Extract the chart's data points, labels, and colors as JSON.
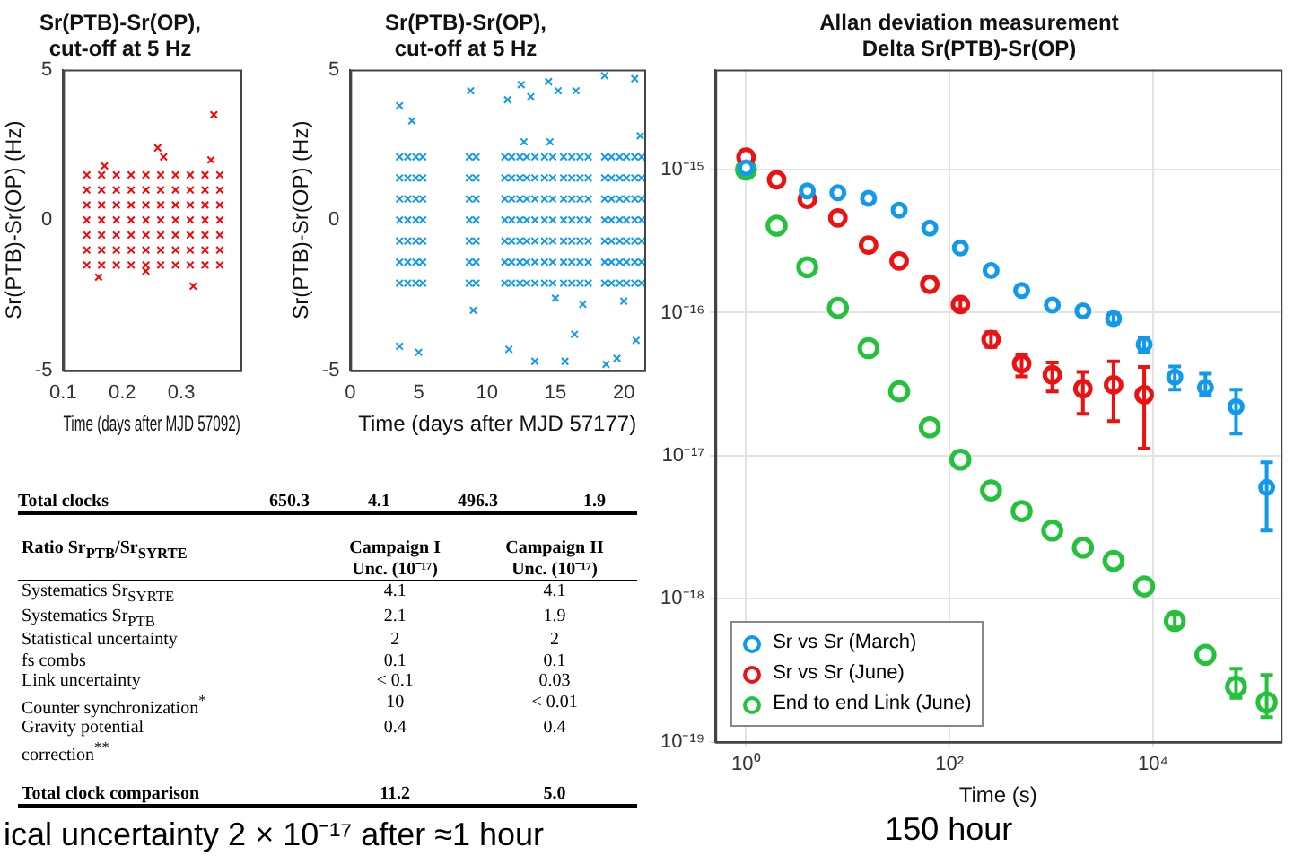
{
  "chart_data": [
    {
      "type": "scatter",
      "title": "Sr(PTB)-Sr(OP),\ncut-off at 5 Hz",
      "xlabel": "Time (days after MJD 57092)",
      "ylabel": "Sr(PTB)-Sr(OP) (Hz)",
      "marker": "cross",
      "xlim": [
        0.1,
        0.4
      ],
      "xticks": [
        0.1,
        0.2,
        0.3
      ],
      "ylim": [
        -5,
        5
      ],
      "yticks": [
        -5,
        0,
        5
      ],
      "series": [
        {
          "color": "#ff0000",
          "x": [
            0.14,
            0.14,
            0.14,
            0.14,
            0.14,
            0.14,
            0.14,
            0.165,
            0.165,
            0.165,
            0.165,
            0.165,
            0.165,
            0.165,
            0.19,
            0.19,
            0.19,
            0.19,
            0.19,
            0.19,
            0.19,
            0.215,
            0.215,
            0.215,
            0.215,
            0.215,
            0.215,
            0.215,
            0.24,
            0.24,
            0.24,
            0.24,
            0.24,
            0.24,
            0.24,
            0.265,
            0.265,
            0.265,
            0.265,
            0.265,
            0.265,
            0.265,
            0.29,
            0.29,
            0.29,
            0.29,
            0.29,
            0.29,
            0.29,
            0.315,
            0.315,
            0.315,
            0.315,
            0.315,
            0.315,
            0.315,
            0.34,
            0.34,
            0.34,
            0.34,
            0.34,
            0.34,
            0.34,
            0.365,
            0.365,
            0.365,
            0.365,
            0.365,
            0.365,
            0.365,
            0.355,
            0.26,
            0.27,
            0.17,
            0.16,
            0.32,
            0.24,
            0.35
          ],
          "values": [
            -1.5,
            -1,
            -0.5,
            0,
            0.5,
            1,
            1.5,
            -1.5,
            -1,
            -0.5,
            0,
            0.5,
            1,
            1.5,
            -1.5,
            -1,
            -0.5,
            0,
            0.5,
            1,
            1.5,
            -1.5,
            -1,
            -0.5,
            0,
            0.5,
            1,
            1.5,
            -1.5,
            -1,
            -0.5,
            0,
            0.5,
            1,
            1.5,
            -1.5,
            -1,
            -0.5,
            0,
            0.5,
            1,
            1.5,
            -1.5,
            -1,
            -0.5,
            0,
            0.5,
            1,
            1.5,
            -1.5,
            -1,
            -0.5,
            0,
            0.5,
            1,
            1.5,
            -1.5,
            -1,
            -0.5,
            0,
            0.5,
            1,
            1.5,
            -1.5,
            -1,
            -0.5,
            0,
            0.5,
            1,
            1.5,
            3.5,
            2.4,
            2.1,
            1.8,
            -1.9,
            -2.2,
            -1.7,
            2
          ]
        }
      ]
    },
    {
      "type": "scatter",
      "title": "Sr(PTB)-Sr(OP),\ncut-off at 5 Hz",
      "xlabel": "Time (days after MJD 57177)",
      "ylabel": "Sr(PTB)-Sr(OP) (Hz)",
      "marker": "cross",
      "xlim": [
        0,
        21.5
      ],
      "xticks": [
        0,
        5,
        10,
        15,
        20
      ],
      "ylim": [
        -5,
        5
      ],
      "yticks": [
        -5,
        0,
        5
      ],
      "series": [
        {
          "color": "#0f9aee",
          "x": [
            3.6,
            3.6,
            3.6,
            3.6,
            3.6,
            3.6,
            3.6,
            4.2,
            4.2,
            4.2,
            4.2,
            4.2,
            4.2,
            4.2,
            4.8,
            4.8,
            4.8,
            4.8,
            4.8,
            4.8,
            4.8,
            5.3,
            5.3,
            5.3,
            5.3,
            5.3,
            5.3,
            5.3,
            8.7,
            8.7,
            8.7,
            8.7,
            8.7,
            8.7,
            8.7,
            9.2,
            9.2,
            9.2,
            9.2,
            9.2,
            9.2,
            9.2,
            11.3,
            11.3,
            11.3,
            11.3,
            11.3,
            11.3,
            11.3,
            11.8,
            11.8,
            11.8,
            11.8,
            11.8,
            11.8,
            11.8,
            12.4,
            12.4,
            12.4,
            12.4,
            12.4,
            12.4,
            12.4,
            12.9,
            12.9,
            12.9,
            12.9,
            12.9,
            12.9,
            12.9,
            13.5,
            13.5,
            13.5,
            13.5,
            13.5,
            13.5,
            13.5,
            14.2,
            14.2,
            14.2,
            14.2,
            14.2,
            14.2,
            14.2,
            14.8,
            14.8,
            14.8,
            14.8,
            14.8,
            14.8,
            14.8,
            15.6,
            15.6,
            15.6,
            15.6,
            15.6,
            15.6,
            15.6,
            16.2,
            16.2,
            16.2,
            16.2,
            16.2,
            16.2,
            16.2,
            16.8,
            16.8,
            16.8,
            16.8,
            16.8,
            16.8,
            16.8,
            17.4,
            17.4,
            17.4,
            17.4,
            17.4,
            17.4,
            17.4,
            18.6,
            18.6,
            18.6,
            18.6,
            18.6,
            18.6,
            18.6,
            19.1,
            19.1,
            19.1,
            19.1,
            19.1,
            19.1,
            19.1,
            19.7,
            19.7,
            19.7,
            19.7,
            19.7,
            19.7,
            19.7,
            20.2,
            20.2,
            20.2,
            20.2,
            20.2,
            20.2,
            20.2,
            20.8,
            20.8,
            20.8,
            20.8,
            20.8,
            20.8,
            20.8,
            21.3,
            21.3,
            21.3,
            21.3,
            21.3,
            21.3,
            21.3,
            3.6,
            4.5,
            3.6,
            5,
            8.8,
            9,
            11.5,
            11.6,
            12.5,
            13.2,
            13.5,
            14.5,
            15.2,
            15.7,
            16.5,
            16.4,
            18.6,
            18.7,
            19.5,
            20.8,
            20.9,
            12.7,
            14.6,
            21.2,
            15,
            17,
            20
          ],
          "values": [
            -2.1,
            -1.4,
            -0.7,
            0,
            0.7,
            1.4,
            2.1,
            -2.1,
            -1.4,
            -0.7,
            0,
            0.7,
            1.4,
            2.1,
            -2.1,
            -1.4,
            -0.7,
            0,
            0.7,
            1.4,
            2.1,
            -2.1,
            -1.4,
            -0.7,
            0,
            0.7,
            1.4,
            2.1,
            -2.1,
            -1.4,
            -0.7,
            0,
            0.7,
            1.4,
            2.1,
            -2.1,
            -1.4,
            -0.7,
            0,
            0.7,
            1.4,
            2.1,
            -2.1,
            -1.4,
            -0.7,
            0,
            0.7,
            1.4,
            2.1,
            -2.1,
            -1.4,
            -0.7,
            0,
            0.7,
            1.4,
            2.1,
            -2.1,
            -1.4,
            -0.7,
            0,
            0.7,
            1.4,
            2.1,
            -2.1,
            -1.4,
            -0.7,
            0,
            0.7,
            1.4,
            2.1,
            -2.1,
            -1.4,
            -0.7,
            0,
            0.7,
            1.4,
            2.1,
            -2.1,
            -1.4,
            -0.7,
            0,
            0.7,
            1.4,
            2.1,
            -2.1,
            -1.4,
            -0.7,
            0,
            0.7,
            1.4,
            2.1,
            -2.1,
            -1.4,
            -0.7,
            0,
            0.7,
            1.4,
            2.1,
            -2.1,
            -1.4,
            -0.7,
            0,
            0.7,
            1.4,
            2.1,
            -2.1,
            -1.4,
            -0.7,
            0,
            0.7,
            1.4,
            2.1,
            -2.1,
            -1.4,
            -0.7,
            0,
            0.7,
            1.4,
            2.1,
            -2.1,
            -1.4,
            -0.7,
            0,
            0.7,
            1.4,
            2.1,
            -2.1,
            -1.4,
            -0.7,
            0,
            0.7,
            1.4,
            2.1,
            -2.1,
            -1.4,
            -0.7,
            0,
            0.7,
            1.4,
            2.1,
            -2.1,
            -1.4,
            -0.7,
            0,
            0.7,
            1.4,
            2.1,
            -2.1,
            -1.4,
            -0.7,
            0,
            0.7,
            1.4,
            2.1,
            -2.1,
            -1.4,
            -0.7,
            0,
            0.7,
            1.4,
            2.1,
            3.8,
            3.3,
            -4.2,
            -4.4,
            4.3,
            -3,
            4,
            -4.3,
            4.5,
            4.1,
            -4.7,
            4.6,
            4.3,
            -4.7,
            4.3,
            -3.8,
            4.8,
            -4.8,
            -4.6,
            4.7,
            -4,
            2.6,
            2.6,
            2.8,
            -2.6,
            -2.8,
            -2.7
          ]
        }
      ]
    },
    {
      "type": "scatter",
      "title": "Allan deviation measurement\nDelta Sr(PTB)-Sr(OP)",
      "xlabel": "Time (s)",
      "log": "xy",
      "grid": true,
      "legend": "bottom left",
      "marker": "circle",
      "xlim": [
        0.5,
        180000
      ],
      "xticks": [
        {
          "value": 1,
          "label": "10⁰"
        },
        {
          "value": 100,
          "label": "10²"
        },
        {
          "value": 10000,
          "label": "10⁴"
        }
      ],
      "ylim": [
        1e-19,
        5e-15
      ],
      "yticks": [
        {
          "value": 1e-19,
          "label": "10⁻¹⁹"
        },
        {
          "value": 1e-18,
          "label": "10⁻¹⁸"
        },
        {
          "value": 1e-17,
          "label": "10⁻¹⁷"
        },
        {
          "value": 1e-16,
          "label": "10⁻¹⁶"
        },
        {
          "value": 1e-15,
          "label": "10⁻¹⁵"
        }
      ],
      "x": [
        1,
        2,
        4,
        8,
        16,
        32,
        64,
        128,
        256,
        512,
        1024,
        2048,
        4096,
        8192,
        16384,
        32768,
        65536,
        131072
      ],
      "series": [
        {
          "name": "Sr vs Sr (March)",
          "color": "#0f9aee",
          "values": [
            1.03e-15,
            null,
            7.1e-16,
            6.9e-16,
            6.3e-16,
            5.2e-16,
            3.9e-16,
            2.84e-16,
            1.97e-16,
            1.43e-16,
            1.13e-16,
            1.03e-16,
            9.1e-17,
            6e-17,
            3.55e-17,
            3e-17,
            2.2e-17,
            6e-18
          ],
          "errors": [
            null,
            null,
            null,
            null,
            null,
            null,
            null,
            null,
            null,
            null,
            null,
            null,
            [
              8.4e-17,
              9.9e-17
            ],
            [
              5.3e-17,
              6.7e-17
            ],
            [
              2.9e-17,
              4.2e-17
            ],
            [
              2.65e-17,
              3.75e-17
            ],
            [
              1.43e-17,
              2.9e-17
            ],
            [
              3e-18,
              9e-18
            ]
          ]
        },
        {
          "name": "Sr vs Sr (June)",
          "color": "#ee1111",
          "values": [
            1.22e-15,
            8.5e-16,
            6.2e-16,
            4.6e-16,
            2.97e-16,
            2.3e-16,
            1.58e-16,
            1.14e-16,
            6.5e-17,
            4.4e-17,
            3.68e-17,
            2.94e-17,
            3.13e-17,
            2.67e-17,
            null,
            null,
            null,
            null
          ],
          "errors": [
            null,
            null,
            null,
            null,
            null,
            null,
            null,
            [
              1.06e-16,
              1.23e-16
            ],
            [
              5.75e-17,
              7.3e-17
            ],
            [
              3.58e-17,
              5.1e-17
            ],
            [
              2.82e-17,
              4.48e-17
            ],
            [
              1.96e-17,
              3.85e-17
            ],
            [
              1.75e-17,
              4.56e-17
            ],
            [
              1.12e-17,
              4.17e-17
            ],
            null,
            null,
            null,
            null
          ]
        },
        {
          "name": "End to end Link (June)",
          "color": "#22c33a",
          "values": [
            1e-15,
            4.06e-16,
            2.08e-16,
            1.08e-16,
            5.65e-17,
            2.82e-17,
            1.58e-17,
            9.4e-18,
            5.72e-18,
            4.1e-18,
            3e-18,
            2.28e-18,
            1.84e-18,
            1.22e-18,
            7e-19,
            4.06e-19,
            2.43e-19,
            1.89e-19
          ],
          "errors": [
            null,
            null,
            null,
            null,
            null,
            null,
            null,
            null,
            null,
            null,
            null,
            null,
            null,
            null,
            [
              6.3e-19,
              7.8e-19
            ],
            null,
            [
              2.03e-19,
              3.25e-19
            ],
            [
              1.49e-19,
              2.94e-19
            ]
          ]
        }
      ]
    },
    {
      "type": "other",
      "annotations": [
        "Total clocks",
        "650.3",
        "4.1",
        "496.3",
        "1.9"
      ]
    },
    {
      "type": "other",
      "categories": [
        "Ratio Sr$_{PTB}$/Sr$_{SYRTE}$",
        "Campaign I\nUnc. (10⁻¹⁷)",
        "Campaign II\nUnc. (10⁻¹⁷)"
      ],
      "y_categories": [
        "Systematics Sr$_{SYRTE}$",
        "Systematics Sr$_{PTB}$",
        "Statistical uncertainty",
        "fs combs",
        "Link uncertainty",
        "Counter synchronization$^{*}$",
        "Gravity potential\ncorrection$^{**}$",
        "Total clock comparison"
      ],
      "cell_labels": [
        [
          "4.1",
          "4.1"
        ],
        [
          "2.1",
          "1.9"
        ],
        [
          "2",
          "2"
        ],
        [
          "0.1",
          "0.1"
        ],
        [
          "< 0.1",
          "0.03"
        ],
        [
          "10",
          "< 0.01"
        ],
        [
          "0.4",
          "0.4"
        ],
        [
          "11.2",
          "5.0"
        ]
      ]
    },
    {
      "type": "other",
      "annotations": [
        "ical uncertainty 2 × 10⁻¹⁷ after ≈1 hour",
        "150 hour"
      ]
    }
  ]
}
